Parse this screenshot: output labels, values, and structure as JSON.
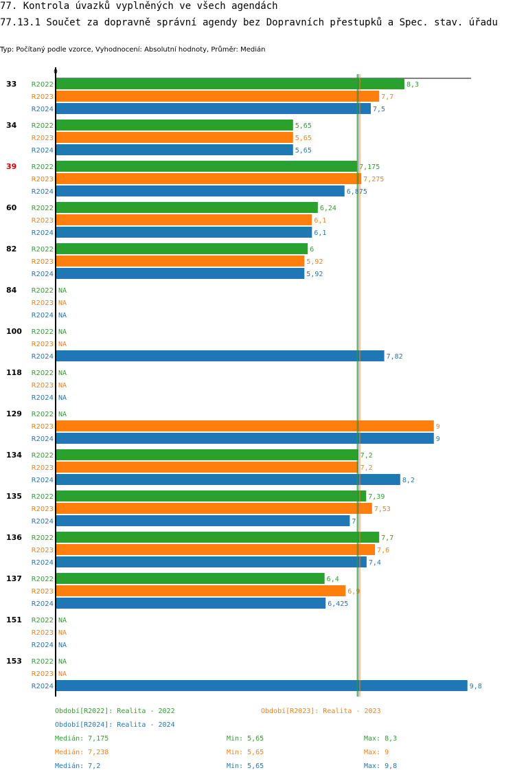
{
  "header": {
    "title": "77. Kontrola úvazků vyplněných ve všech agendách",
    "subtitle": "77.13.1 Součet za dopravně správní agendy bez Dopravních přestupků a Spec. stav. úřadu",
    "meta": "Typ: Počítaný podle vzorce, Vyhodnocení: Absolutní hodnoty, Průměr: Medián"
  },
  "colors": {
    "R2022": "#2ca02c",
    "R2023": "#ff7f0e",
    "R2024": "#1f77b4",
    "highlight": "#cc0000"
  },
  "chart_data": {
    "type": "bar",
    "orientation": "horizontal",
    "x_tick_label": "0",
    "xlim": [
      0,
      10
    ],
    "na_label": "NA",
    "series_names": [
      "R2022",
      "R2023",
      "R2024"
    ],
    "groups": [
      {
        "id": "33",
        "highlight": false,
        "values": [
          8.3,
          7.7,
          7.5
        ],
        "labels": [
          "8,3",
          "7,7",
          "7,5"
        ]
      },
      {
        "id": "34",
        "highlight": false,
        "values": [
          5.65,
          5.65,
          5.65
        ],
        "labels": [
          "5,65",
          "5,65",
          "5,65"
        ]
      },
      {
        "id": "39",
        "highlight": true,
        "values": [
          7.175,
          7.275,
          6.875
        ],
        "labels": [
          "7,175",
          "7,275",
          "6,875"
        ]
      },
      {
        "id": "60",
        "highlight": false,
        "values": [
          6.24,
          6.1,
          6.1
        ],
        "labels": [
          "6,24",
          "6,1",
          "6,1"
        ]
      },
      {
        "id": "82",
        "highlight": false,
        "values": [
          6,
          5.92,
          5.92
        ],
        "labels": [
          "6",
          "5,92",
          "5,92"
        ]
      },
      {
        "id": "84",
        "highlight": false,
        "values": [
          null,
          null,
          null
        ],
        "labels": [
          "NA",
          "NA",
          "NA"
        ]
      },
      {
        "id": "100",
        "highlight": false,
        "values": [
          null,
          null,
          7.82
        ],
        "labels": [
          "NA",
          "NA",
          "7,82"
        ]
      },
      {
        "id": "118",
        "highlight": false,
        "values": [
          null,
          null,
          null
        ],
        "labels": [
          "NA",
          "NA",
          "NA"
        ]
      },
      {
        "id": "129",
        "highlight": false,
        "values": [
          null,
          9,
          9
        ],
        "labels": [
          "NA",
          "9",
          "9"
        ]
      },
      {
        "id": "134",
        "highlight": false,
        "values": [
          7.2,
          7.2,
          8.2
        ],
        "labels": [
          "7,2",
          "7,2",
          "8,2"
        ]
      },
      {
        "id": "135",
        "highlight": false,
        "values": [
          7.39,
          7.53,
          7
        ],
        "labels": [
          "7,39",
          "7,53",
          "7"
        ]
      },
      {
        "id": "136",
        "highlight": false,
        "values": [
          7.7,
          7.6,
          7.4
        ],
        "labels": [
          "7,7",
          "7,6",
          "7,4"
        ]
      },
      {
        "id": "137",
        "highlight": false,
        "values": [
          6.4,
          6.9,
          6.425
        ],
        "labels": [
          "6,4",
          "6,9",
          "6,425"
        ]
      },
      {
        "id": "151",
        "highlight": false,
        "values": [
          null,
          null,
          null
        ],
        "labels": [
          "NA",
          "NA",
          "NA"
        ]
      },
      {
        "id": "153",
        "highlight": false,
        "values": [
          null,
          null,
          9.8
        ],
        "labels": [
          "NA",
          "NA",
          "9,8"
        ]
      }
    ],
    "median_lines": [
      {
        "series": "R2022",
        "value": 7.175
      },
      {
        "series": "R2023",
        "value": 7.238
      },
      {
        "series": "R2024",
        "value": 7.2
      }
    ]
  },
  "footer": {
    "legend": {
      "r2022": "Období[R2022]: Realita - 2022",
      "r2023": "Období[R2023]: Realita - 2023",
      "r2024": "Období[R2024]: Realita - 2024"
    },
    "stats": {
      "r2022": {
        "median": "Medián: 7,175",
        "min": "Min: 5,65",
        "max": "Max: 8,3"
      },
      "r2023": {
        "median": "Medián: 7,238",
        "min": "Min: 5,65",
        "max": "Max: 9"
      },
      "r2024": {
        "median": "Medián: 7,2",
        "min": "Min: 5,65",
        "max": "Max: 9,8"
      }
    }
  }
}
